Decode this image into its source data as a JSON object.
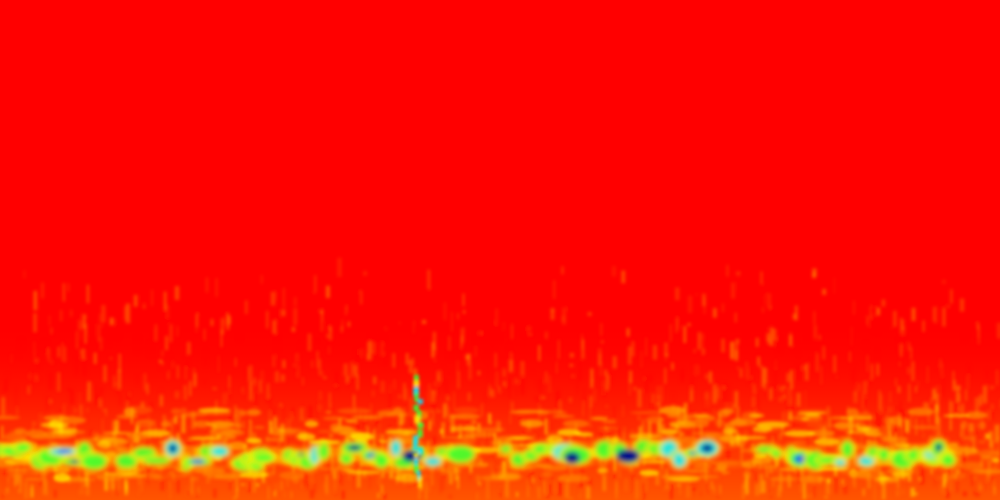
{
  "spectrogram": {
    "colormap": "jet",
    "background_color": "#ff0000",
    "colors": {
      "hot_red": "#ff0000",
      "orange": "#ff8c00",
      "yellow": "#ffee00",
      "green": "#33ff33",
      "cyan": "#00e5ff",
      "blue": "#0033ff",
      "deep_blue": "#00008b"
    },
    "description_visible_text": ""
  }
}
